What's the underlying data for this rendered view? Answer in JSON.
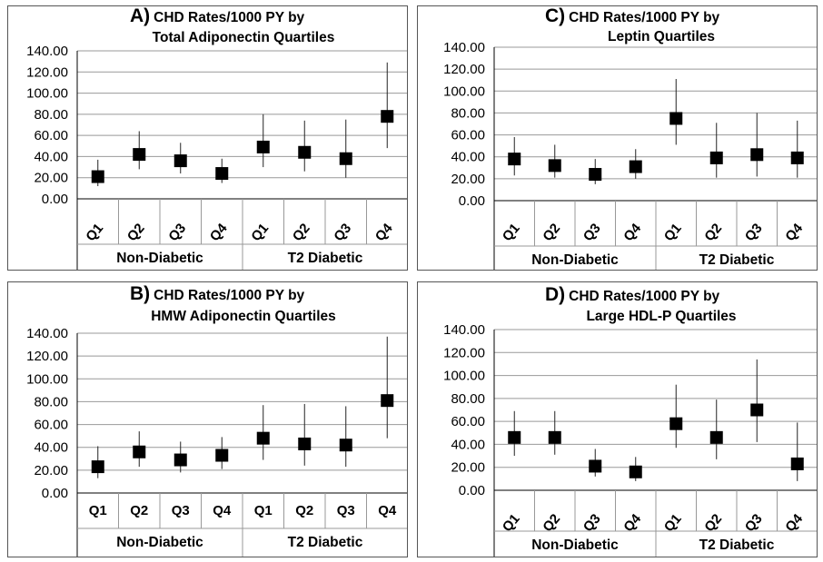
{
  "chart_data": [
    {
      "type": "scatter",
      "letter": "A)",
      "title_line1": "CHD Rates/1000 PY by",
      "title_line2": "Total Adiponectin Quartiles",
      "ylim": [
        0,
        140
      ],
      "yticks": [
        "0.00",
        "20.00",
        "40.00",
        "60.00",
        "80.00",
        "100.00",
        "120.00",
        "140.00"
      ],
      "categories": [
        "Q1",
        "Q2",
        "Q3",
        "Q4",
        "Q1",
        "Q2",
        "Q3",
        "Q4"
      ],
      "groups": [
        "Non-Diabetic",
        "T2 Diabetic"
      ],
      "rotated_labels": true,
      "values": [
        21,
        42,
        36,
        24,
        49,
        44,
        38,
        78
      ],
      "lower": [
        12,
        28,
        24,
        15,
        30,
        26,
        20,
        48
      ],
      "upper": [
        37,
        64,
        53,
        38,
        80,
        74,
        75,
        129
      ]
    },
    {
      "type": "scatter",
      "letter": "B)",
      "title_line1": "CHD Rates/1000 PY by",
      "title_line2": "HMW Adiponectin Quartiles",
      "ylim": [
        0,
        140
      ],
      "yticks": [
        "0.00",
        "20.00",
        "40.00",
        "60.00",
        "80.00",
        "100.00",
        "120.00",
        "140.00"
      ],
      "categories": [
        "Q1",
        "Q2",
        "Q3",
        "Q4",
        "Q1",
        "Q2",
        "Q3",
        "Q4"
      ],
      "groups": [
        "Non-Diabetic",
        "T2 Diabetic"
      ],
      "rotated_labels": false,
      "values": [
        23,
        36,
        29,
        33,
        48,
        43,
        42,
        81
      ],
      "lower": [
        13,
        23,
        18,
        21,
        29,
        24,
        23,
        48
      ],
      "upper": [
        41,
        54,
        45,
        49,
        77,
        78,
        76,
        137
      ]
    },
    {
      "type": "scatter",
      "letter": "C)",
      "title_line1": "CHD Rates/1000 PY by",
      "title_line2": "Leptin Quartiles",
      "ylim": [
        0,
        140
      ],
      "yticks": [
        "0.00",
        "20.00",
        "40.00",
        "60.00",
        "80.00",
        "100.00",
        "120.00",
        "140.00"
      ],
      "categories": [
        "Q1",
        "Q2",
        "Q3",
        "Q4",
        "Q1",
        "Q2",
        "Q3",
        "Q4"
      ],
      "groups": [
        "Non-Diabetic",
        "T2 Diabetic"
      ],
      "rotated_labels": true,
      "values": [
        38,
        32,
        24,
        31,
        75,
        39,
        42,
        39
      ],
      "lower": [
        23,
        21,
        15,
        20,
        51,
        21,
        22,
        21
      ],
      "upper": [
        58,
        51,
        38,
        47,
        111,
        71,
        80,
        73
      ]
    },
    {
      "type": "scatter",
      "letter": "D)",
      "title_line1": "CHD Rates/1000 PY by",
      "title_line2": "Large HDL-P Quartiles",
      "ylim": [
        0,
        140
      ],
      "yticks": [
        "0.00",
        "20.00",
        "40.00",
        "60.00",
        "80.00",
        "100.00",
        "120.00",
        "140.00"
      ],
      "categories": [
        "Q1",
        "Q2",
        "Q3",
        "Q4",
        "Q1",
        "Q2",
        "Q3",
        "Q4"
      ],
      "groups": [
        "Non-Diabetic",
        "T2 Diabetic"
      ],
      "rotated_labels": true,
      "values": [
        46,
        46,
        21,
        16,
        58,
        46,
        70,
        23
      ],
      "lower": [
        30,
        31,
        12,
        8,
        37,
        27,
        42,
        8
      ],
      "upper": [
        69,
        69,
        36,
        29,
        92,
        79,
        114,
        59
      ]
    }
  ]
}
